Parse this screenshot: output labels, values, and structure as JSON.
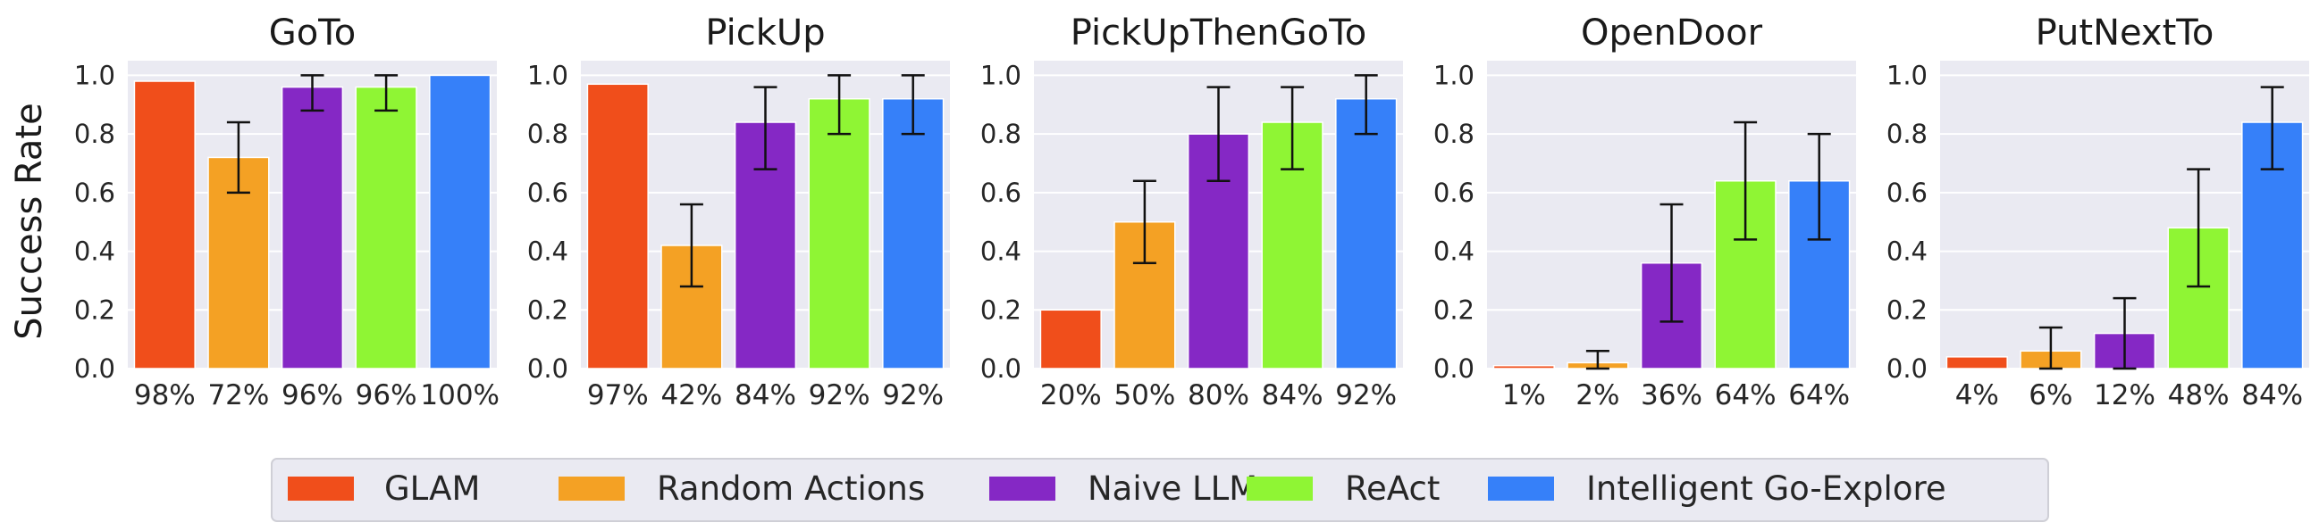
{
  "chart_data": {
    "type": "bar",
    "ylabel": "Success Rate",
    "ylim": [
      0,
      1.05
    ],
    "yticks": [
      "0.0",
      "0.2",
      "0.4",
      "0.6",
      "0.8",
      "1.0"
    ],
    "grid": true,
    "legend_position": "bottom-center",
    "series_names": [
      "GLAM",
      "Random Actions",
      "Naive LLM",
      "ReAct",
      "Intelligent Go-Explore"
    ],
    "series_colors": [
      "#f04e1b",
      "#f4a124",
      "#8528c5",
      "#8ff534",
      "#3680f9"
    ],
    "panels": [
      {
        "title": "GoTo",
        "values": [
          0.98,
          0.72,
          0.96,
          0.96,
          1.0
        ],
        "labels": [
          "98%",
          "72%",
          "96%",
          "96%",
          "100%"
        ],
        "errors": [
          null,
          [
            0.6,
            0.84
          ],
          [
            0.88,
            1.0
          ],
          [
            0.88,
            1.0
          ],
          null
        ]
      },
      {
        "title": "PickUp",
        "values": [
          0.97,
          0.42,
          0.84,
          0.92,
          0.92
        ],
        "labels": [
          "97%",
          "42%",
          "84%",
          "92%",
          "92%"
        ],
        "errors": [
          null,
          [
            0.28,
            0.56
          ],
          [
            0.68,
            0.96
          ],
          [
            0.8,
            1.0
          ],
          [
            0.8,
            1.0
          ]
        ]
      },
      {
        "title": "PickUpThenGoTo",
        "values": [
          0.2,
          0.5,
          0.8,
          0.84,
          0.92
        ],
        "labels": [
          "20%",
          "50%",
          "80%",
          "84%",
          "92%"
        ],
        "errors": [
          null,
          [
            0.36,
            0.64
          ],
          [
            0.64,
            0.96
          ],
          [
            0.68,
            0.96
          ],
          [
            0.8,
            1.0
          ]
        ]
      },
      {
        "title": "OpenDoor",
        "values": [
          0.01,
          0.02,
          0.36,
          0.64,
          0.64
        ],
        "labels": [
          "1%",
          "2%",
          "36%",
          "64%",
          "64%"
        ],
        "errors": [
          null,
          [
            0.0,
            0.06
          ],
          [
            0.16,
            0.56
          ],
          [
            0.44,
            0.84
          ],
          [
            0.44,
            0.8
          ]
        ]
      },
      {
        "title": "PutNextTo",
        "values": [
          0.04,
          0.06,
          0.12,
          0.48,
          0.84
        ],
        "labels": [
          "4%",
          "6%",
          "12%",
          "48%",
          "84%"
        ],
        "errors": [
          null,
          [
            0.0,
            0.14
          ],
          [
            0.0,
            0.24
          ],
          [
            0.28,
            0.68
          ],
          [
            0.68,
            0.96
          ]
        ]
      }
    ]
  }
}
